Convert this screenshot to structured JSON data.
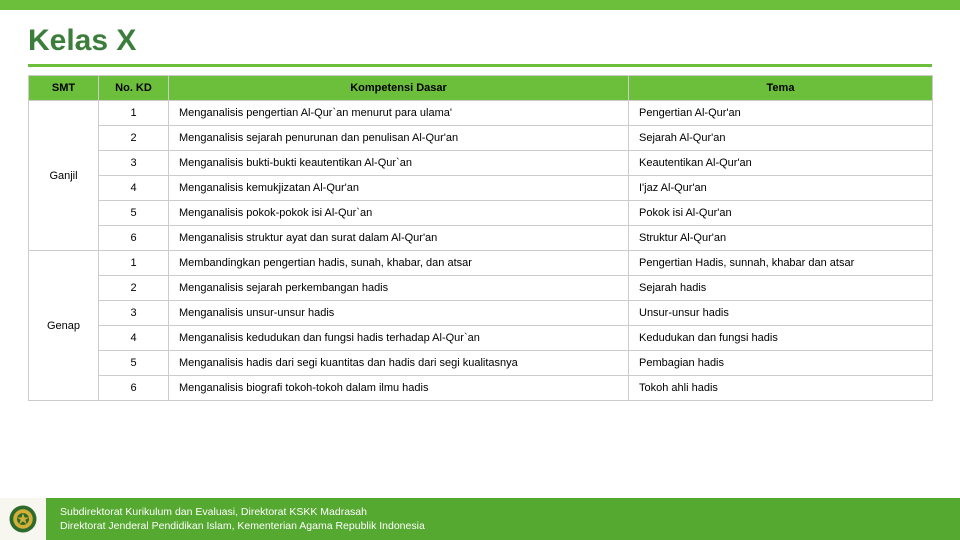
{
  "colors": {
    "accent": "#6bbf3a",
    "title": "#3b7e3b",
    "header_bg": "#6bbf3a",
    "footer_bg": "#55a830",
    "border": "#cccccc"
  },
  "title": "Kelas X",
  "table": {
    "headers": {
      "smt": "SMT",
      "kd": "No. KD",
      "kom": "Kompetensi Dasar",
      "tema": "Tema"
    },
    "groups": [
      {
        "smt": "Ganjil",
        "rows": [
          {
            "kd": "1",
            "kom": "Menganalisis pengertian Al-Qur`an menurut para ulama'",
            "tema": "Pengertian Al-Qur'an"
          },
          {
            "kd": "2",
            "kom": "Menganalisis sejarah penurunan dan penulisan Al-Qur'an",
            "tema": "Sejarah Al-Qur'an"
          },
          {
            "kd": "3",
            "kom": "Menganalisis bukti-bukti keautentikan Al-Qur`an",
            "tema": "Keautentikan Al-Qur'an"
          },
          {
            "kd": "4",
            "kom": "Menganalisis kemukjizatan Al-Qur'an",
            "tema": "I'jaz Al-Qur'an"
          },
          {
            "kd": "5",
            "kom": "Menganalisis pokok-pokok isi Al-Qur`an",
            "tema": "Pokok isi Al-Qur'an"
          },
          {
            "kd": "6",
            "kom": "Menganalisis struktur ayat dan surat dalam Al-Qur'an",
            "tema": "Struktur Al-Qur'an"
          }
        ]
      },
      {
        "smt": "Genap",
        "rows": [
          {
            "kd": "1",
            "kom": "Membandingkan pengertian hadis, sunah, khabar, dan atsar",
            "tema": "Pengertian Hadis, sunnah, khabar dan atsar"
          },
          {
            "kd": "2",
            "kom": "Menganalisis sejarah perkembangan hadis",
            "tema": "Sejarah hadis"
          },
          {
            "kd": "3",
            "kom": "Menganalisis unsur-unsur hadis",
            "tema": "Unsur-unsur hadis"
          },
          {
            "kd": "4",
            "kom": "Menganalisis kedudukan dan fungsi hadis terhadap Al-Qur`an",
            "tema": "Kedudukan dan fungsi hadis"
          },
          {
            "kd": "5",
            "kom": "Menganalisis hadis dari segi kuantitas dan hadis dari segi kualitasnya",
            "tema": "Pembagian hadis"
          },
          {
            "kd": "6",
            "kom": "Menganalisis biografi tokoh-tokoh dalam ilmu hadis",
            "tema": "Tokoh ahli hadis"
          }
        ]
      }
    ]
  },
  "footer": {
    "line1": "Subdirektorat Kurikulum dan Evaluasi, Direktorat KSKK Madrasah",
    "line2": "Direktorat Jenderal Pendidikan Islam, Kementerian Agama Republik Indonesia"
  }
}
